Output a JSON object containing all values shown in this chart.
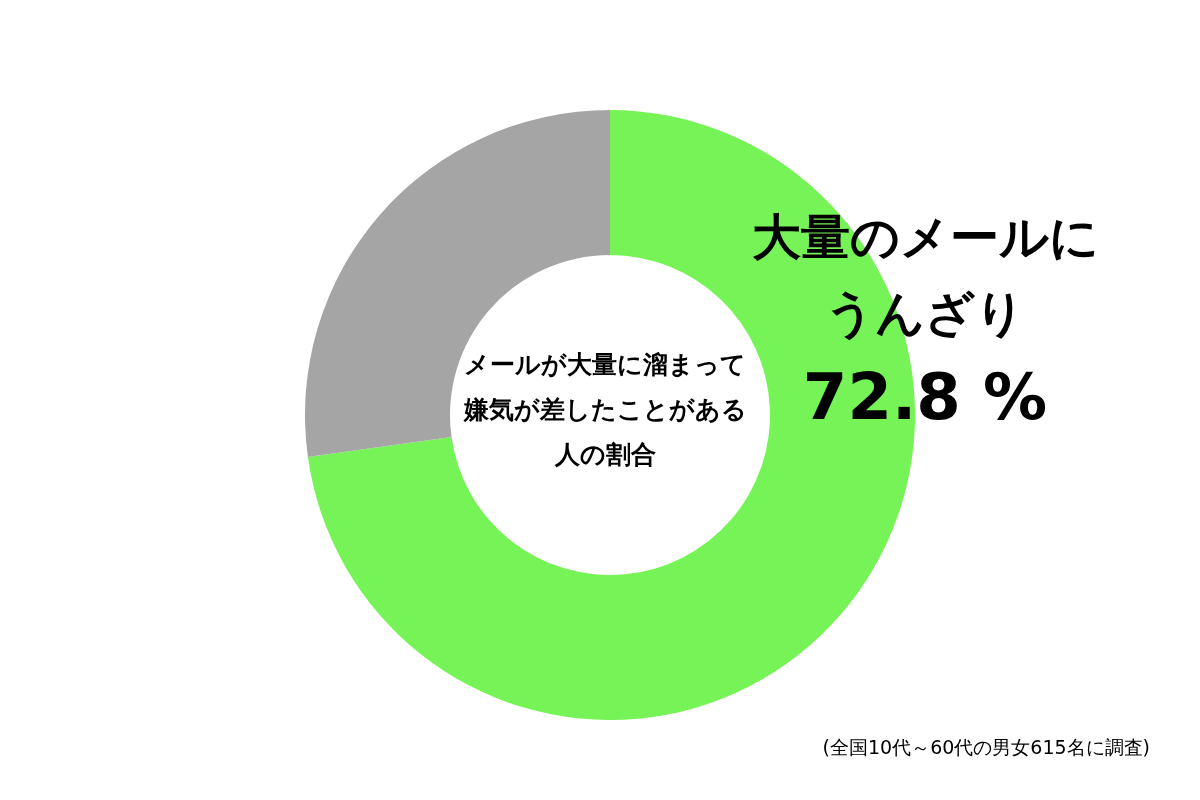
{
  "chart_data": {
    "type": "donut",
    "title": "メールが大量に溜まって嫌気が差したことがある人の割合",
    "categories": [
      "大量のメールにうんざり",
      null
    ],
    "values": [
      72.8,
      27.2
    ],
    "colors": [
      "#76f356",
      "#a5a5a5"
    ],
    "value_labels": [
      "72.8 %",
      null
    ],
    "annotations": [
      "(全国10代～60代の男女615名に調査)"
    ]
  }
}
